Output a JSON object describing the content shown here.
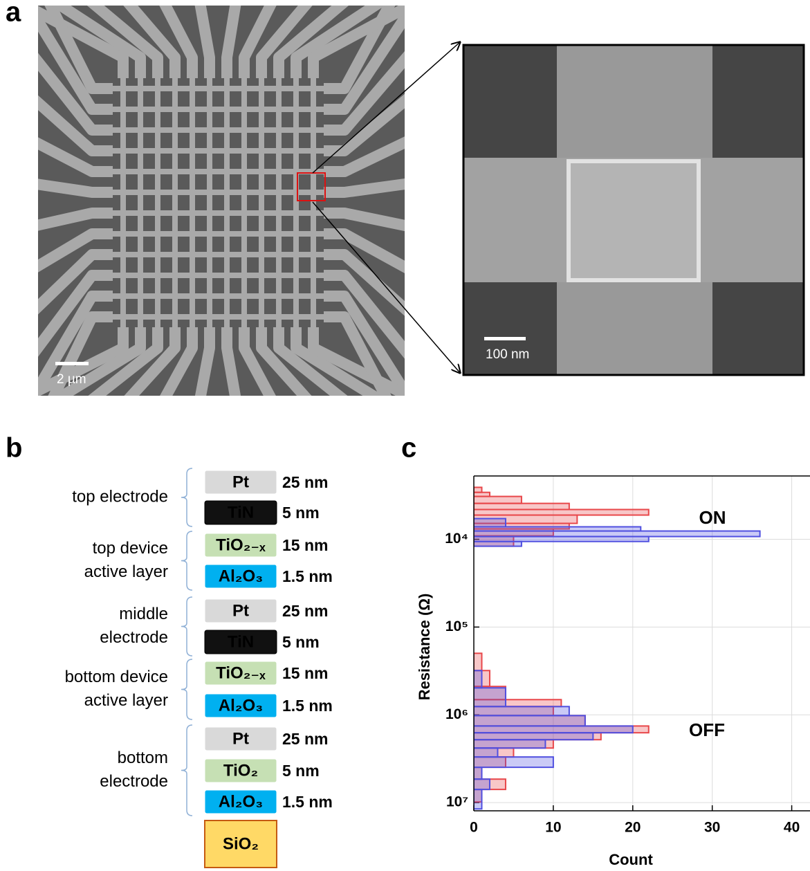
{
  "panel_labels": [
    "a",
    "b",
    "c"
  ],
  "panel_a": {
    "overview_scale": "2 µm",
    "zoom_scale": "100 nm"
  },
  "panel_b": {
    "groups": [
      {
        "lines": [
          "top electrode"
        ],
        "layers": [
          {
            "name": "Pt",
            "thickness": "25 nm",
            "color": "#d9d9d9"
          },
          {
            "name": "TiN",
            "thickness": "5 nm",
            "color": "#111111"
          }
        ]
      },
      {
        "lines": [
          "top device",
          "active layer"
        ],
        "layers": [
          {
            "name": "TiO₂₋ₓ",
            "thickness": "15 nm",
            "color": "#c6e0b4"
          },
          {
            "name": "Al₂O₃",
            "thickness": "1.5 nm",
            "color": "#00b0f0"
          }
        ]
      },
      {
        "lines": [
          "middle",
          "electrode"
        ],
        "layers": [
          {
            "name": "Pt",
            "thickness": "25 nm",
            "color": "#d9d9d9"
          },
          {
            "name": "TiN",
            "thickness": "5 nm",
            "color": "#111111"
          }
        ]
      },
      {
        "lines": [
          "bottom device",
          "active layer"
        ],
        "layers": [
          {
            "name": "TiO₂₋ₓ",
            "thickness": "15 nm",
            "color": "#c6e0b4"
          },
          {
            "name": "Al₂O₃",
            "thickness": "1.5 nm",
            "color": "#00b0f0"
          }
        ]
      },
      {
        "lines": [
          "bottom",
          "electrode"
        ],
        "layers": [
          {
            "name": "Pt",
            "thickness": "25 nm",
            "color": "#d9d9d9"
          },
          {
            "name": "TiO₂",
            "thickness": "5 nm",
            "color": "#c6e0b4"
          },
          {
            "name": "Al₂O₃",
            "thickness": "1.5 nm",
            "color": "#00b0f0"
          }
        ]
      }
    ],
    "substrate": {
      "name": "SiO₂",
      "color": "#ffd966"
    }
  },
  "chart_data": {
    "type": "histogram",
    "orientation": "horizontal",
    "xlabel": "Count",
    "ylabel": "Resistance (Ω)",
    "xlim": [
      0,
      42.3
    ],
    "xticks": [
      0,
      10,
      20,
      30,
      40
    ],
    "ylim": [
      1900,
      12400000
    ],
    "yscale": "log",
    "y_reversed": true,
    "yticks": [
      {
        "value": 10000,
        "label": "10⁴"
      },
      {
        "value": 100000,
        "label": "10⁵"
      },
      {
        "value": 1000000,
        "label": "10⁶"
      },
      {
        "value": 10000000,
        "label": "10⁷"
      }
    ],
    "grid": true,
    "annotations": [
      "ON",
      "OFF"
    ],
    "series": [
      {
        "color": "#e8474a",
        "bins": [
          2560,
          2920,
          3250,
          3900,
          4580,
          5300,
          6590,
          7620,
          9140,
          12000,
          199000,
          313000,
          475000,
          671000,
          805000,
          1020000,
          1340000,
          1600000,
          1920000,
          2390000,
          3020000,
          3960000,
          5400000,
          7080000,
          9820000
        ],
        "values": [
          1,
          2,
          6,
          12,
          22,
          13,
          12,
          10,
          5,
          0,
          1,
          2,
          4,
          11,
          10,
          14,
          22,
          16,
          10,
          5,
          4,
          1,
          4,
          1
        ]
      },
      {
        "color": "#5050e0",
        "bins": [
          5810,
          7210,
          8050,
          9310,
          10600,
          12000,
          313000,
          493000,
          805000,
          1020000,
          1340000,
          1600000,
          1920000,
          2390000,
          3020000,
          3960000,
          5400000,
          7080000,
          11800000
        ],
        "values": [
          4,
          21,
          36,
          22,
          6,
          0,
          1,
          4,
          12,
          14,
          20,
          15,
          9,
          3,
          10,
          1,
          2,
          1
        ]
      }
    ]
  }
}
